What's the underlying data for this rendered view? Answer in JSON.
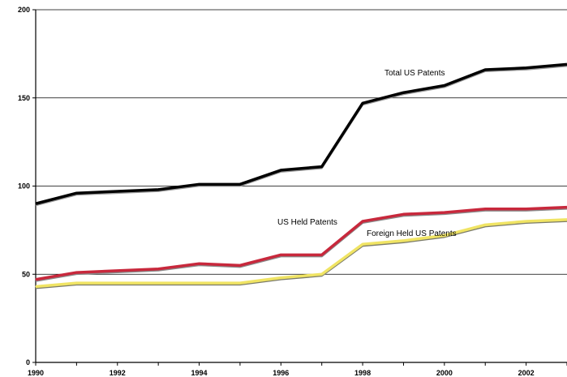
{
  "chart_data": {
    "type": "line",
    "title": "",
    "xlabel": "",
    "ylabel": "",
    "ylim": [
      0,
      200
    ],
    "yticks": [
      0,
      50,
      100,
      150,
      200
    ],
    "x": [
      1990,
      1991,
      1992,
      1993,
      1994,
      1995,
      1996,
      1997,
      1998,
      1999,
      2000,
      2001,
      2002,
      2003
    ],
    "xtick_labels": [
      "1990",
      "1992",
      "1994",
      "1996",
      "1998",
      "2000",
      "2002"
    ],
    "grid": "horizontal",
    "legend": "none",
    "series": [
      {
        "name": "Total US Patents",
        "color": "#000000",
        "values": [
          90,
          96,
          97,
          98,
          101,
          101,
          109,
          111,
          147,
          153,
          157,
          166,
          167,
          169
        ]
      },
      {
        "name": "US Held Patents",
        "color": "#c8283c",
        "values": [
          47,
          51,
          52,
          53,
          56,
          55,
          61,
          61,
          80,
          84,
          85,
          87,
          87,
          88
        ]
      },
      {
        "name": "Foreign Held US Patents",
        "color": "#f0e464",
        "values": [
          43,
          45,
          45,
          45,
          45,
          45,
          48,
          50,
          67,
          69,
          72,
          78,
          80,
          81
        ]
      }
    ]
  }
}
